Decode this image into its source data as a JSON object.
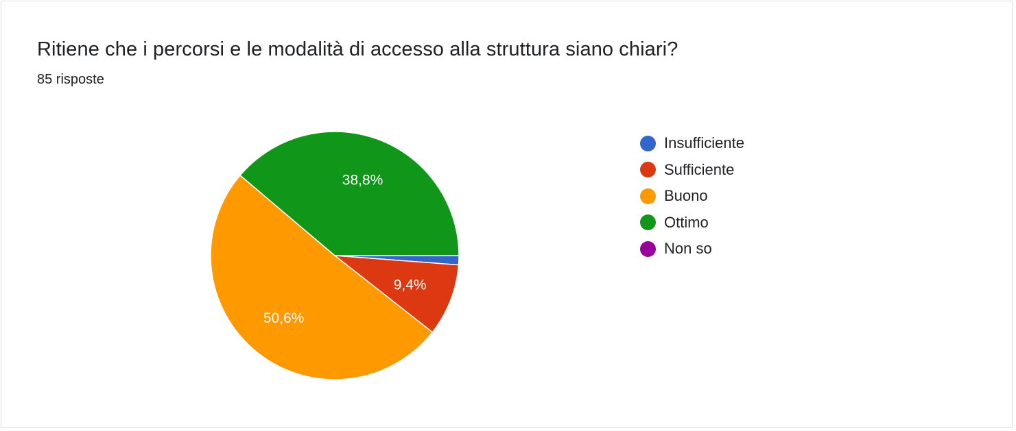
{
  "header": {
    "title": "Ritiene che i percorsi e le modalità di accesso alla struttura siano chiari?",
    "responses": "85 risposte"
  },
  "chart_data": {
    "type": "pie",
    "categories": [
      "Insufficiente",
      "Sufficiente",
      "Buono",
      "Ottimo",
      "Non so"
    ],
    "values": [
      1.2,
      9.4,
      50.6,
      38.8,
      0
    ],
    "slice_labels": [
      "",
      "9,4%",
      "50,6%",
      "38,8%",
      ""
    ],
    "colors": [
      "#3366cc",
      "#dc3912",
      "#ff9900",
      "#109618",
      "#990099"
    ],
    "legend_position": "right"
  }
}
